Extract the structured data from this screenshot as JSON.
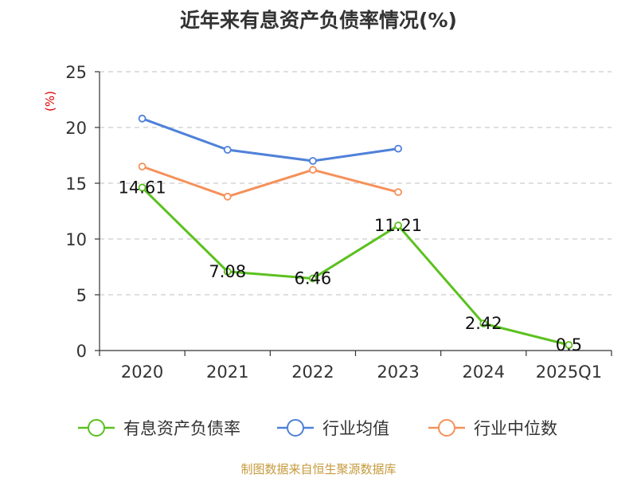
{
  "chart_data": {
    "type": "line",
    "title": "近年来有息资产负债率情况(%)",
    "ylabel": "(%)",
    "xlabel": "",
    "categories": [
      "2020",
      "2021",
      "2022",
      "2023",
      "2024",
      "2025Q1"
    ],
    "ylim": [
      0,
      25
    ],
    "yticks": [
      0,
      5,
      10,
      15,
      20,
      25
    ],
    "grid": true,
    "legend_position": "bottom",
    "series": [
      {
        "name": "有息资产负债率",
        "color": "#5cc11f",
        "values": [
          14.61,
          7.08,
          6.46,
          11.21,
          2.42,
          0.5
        ],
        "labels": [
          "14.61",
          "7.08",
          "6.46",
          "11.21",
          "2.42",
          "0.5"
        ]
      },
      {
        "name": "行业均值",
        "color": "#4f81d9",
        "values": [
          20.8,
          18.0,
          17.0,
          18.1,
          null,
          null
        ]
      },
      {
        "name": "行业中位数",
        "color": "#f5915b",
        "values": [
          16.5,
          13.8,
          16.2,
          14.2,
          null,
          null
        ]
      }
    ]
  },
  "footer": {
    "source": "制图数据来自恒生聚源数据库"
  }
}
